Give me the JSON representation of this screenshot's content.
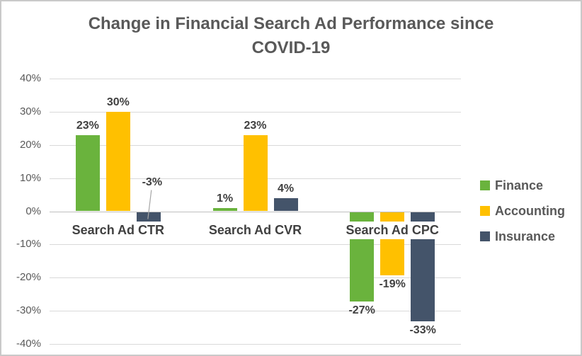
{
  "chart_data": {
    "type": "bar",
    "title": "Change in Financial Search Ad Performance since COVID-19",
    "title_lines": [
      "Change in Financial Search Ad Performance since",
      "COVID-19"
    ],
    "categories": [
      "Search Ad CTR",
      "Search Ad CVR",
      "Search Ad CPC"
    ],
    "series": [
      {
        "name": "Finance",
        "color": "#6ab33d",
        "values": [
          23,
          1,
          -27
        ]
      },
      {
        "name": "Accounting",
        "color": "#ffc000",
        "values": [
          30,
          23,
          -19
        ]
      },
      {
        "name": "Insurance",
        "color": "#44546a",
        "values": [
          -3,
          4,
          -33
        ]
      }
    ],
    "yticks": [
      40,
      30,
      20,
      10,
      0,
      -10,
      -20,
      -30,
      -40
    ],
    "ylim": [
      -40,
      40
    ],
    "value_suffix": "%",
    "data_labels": true,
    "grid": true,
    "legend_position": "right",
    "colors": {
      "gridline": "#d9d9d9",
      "axis_line": "#bfbfbf",
      "callout_line": "#a6a6a6",
      "title_text": "#595959",
      "tick_text": "#595959",
      "data_label_text": "#404040",
      "category_text": "#404040",
      "legend_text": "#595959",
      "background": "#ffffff",
      "border": "#c9c9c9"
    }
  }
}
